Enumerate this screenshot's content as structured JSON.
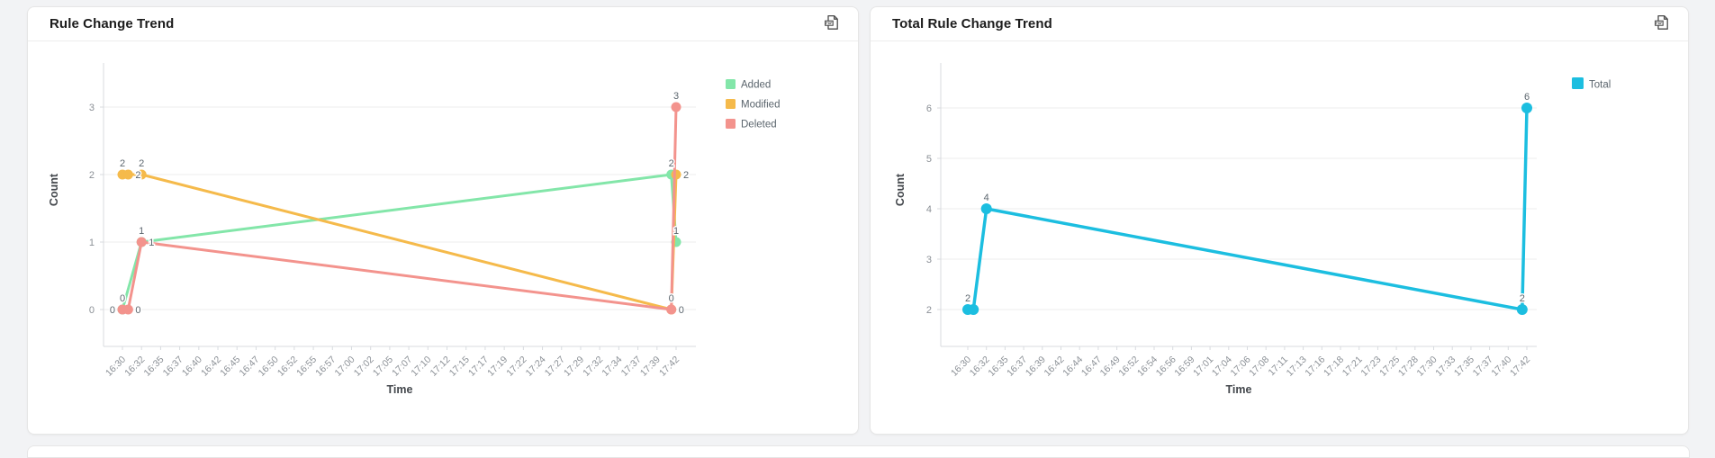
{
  "page": {
    "background": "#f2f3f5"
  },
  "panels": [
    {
      "title": "Rule Change Trend",
      "action_icon": "pdf-export"
    },
    {
      "title": "Total Rule Change Trend",
      "action_icon": "pdf-export"
    }
  ],
  "chart_data": [
    {
      "type": "line",
      "title": "Rule Change Trend",
      "xlabel": "Time",
      "ylabel": "Count",
      "grid": true,
      "legend_position": "right",
      "y_ticks": [
        0,
        1,
        2,
        3
      ],
      "ylim": [
        0,
        3.7
      ],
      "x_tick_labels": [
        "16:30",
        "16:32",
        "16:35",
        "16:37",
        "16:40",
        "16:42",
        "16:45",
        "16:47",
        "16:50",
        "16:52",
        "16:55",
        "16:57",
        "17:00",
        "17:02",
        "17:05",
        "17:07",
        "17:10",
        "17:12",
        "17:15",
        "17:17",
        "17:19",
        "17:22",
        "17:24",
        "17:27",
        "17:29",
        "17:32",
        "17:34",
        "17:37",
        "17:39",
        "17:42"
      ],
      "style": {
        "grid": "#ededed",
        "axis": "#d8dbdf",
        "tick_label": "#8b9096",
        "data_label": "#5c666e",
        "axis_title": "#43474c",
        "legend_text": "#5a646c"
      },
      "series": [
        {
          "name": "Added",
          "color": "#83e6a9",
          "points": [
            {
              "t": "16:30",
              "xi": 0,
              "y": 0,
              "lp": "left"
            },
            {
              "t": "16:32",
              "xi": 1,
              "y": 1,
              "lp": "right"
            },
            {
              "t": "17:39",
              "xi": 28.75,
              "y": 2,
              "lp": "above"
            },
            {
              "t": "17:42",
              "xi": 29,
              "y": 1,
              "lp": "above"
            }
          ]
        },
        {
          "name": "Modified",
          "color": "#f5ba4b",
          "points": [
            {
              "t": "16:30",
              "xi": 0,
              "y": 2,
              "lp": "above"
            },
            {
              "t": "16:30",
              "xi": 0.3,
              "y": 2,
              "lp": "right"
            },
            {
              "t": "16:32",
              "xi": 1,
              "y": 2,
              "lp": "above"
            },
            {
              "t": "17:39",
              "xi": 28.75,
              "y": 0,
              "lp": "right"
            },
            {
              "t": "17:42",
              "xi": 29,
              "y": 2,
              "lp": "right"
            }
          ]
        },
        {
          "name": "Deleted",
          "color": "#f3938d",
          "points": [
            {
              "t": "16:30",
              "xi": 0,
              "y": 0,
              "lp": "above"
            },
            {
              "t": "16:30",
              "xi": 0.3,
              "y": 0,
              "lp": "right"
            },
            {
              "t": "16:32",
              "xi": 1,
              "y": 1,
              "lp": "above"
            },
            {
              "t": "17:39",
              "xi": 28.75,
              "y": 0,
              "lp": "above"
            },
            {
              "t": "17:42",
              "xi": 29,
              "y": 3,
              "lp": "above"
            }
          ]
        }
      ]
    },
    {
      "type": "line",
      "title": "Total Rule Change Trend",
      "xlabel": "Time",
      "ylabel": "Count",
      "grid": true,
      "legend_position": "right",
      "y_ticks": [
        2,
        3,
        4,
        5,
        6
      ],
      "ylim": [
        1.2,
        6.7
      ],
      "x_tick_labels": [
        "16:30",
        "16:32",
        "16:35",
        "16:37",
        "16:39",
        "16:42",
        "16:44",
        "16:47",
        "16:49",
        "16:52",
        "16:54",
        "16:56",
        "16:59",
        "17:01",
        "17:04",
        "17:06",
        "17:08",
        "17:11",
        "17:13",
        "17:16",
        "17:18",
        "17:21",
        "17:23",
        "17:25",
        "17:28",
        "17:30",
        "17:33",
        "17:35",
        "17:37",
        "17:40",
        "17:42"
      ],
      "style": {
        "grid": "#ededed",
        "axis": "#d8dbdf",
        "tick_label": "#8b9096",
        "data_label": "#5c666e",
        "axis_title": "#43474c",
        "legend_text": "#5a646c"
      },
      "series": [
        {
          "name": "Total",
          "color": "#1cbee0",
          "points": [
            {
              "t": "16:30",
              "xi": 0,
              "y": 2,
              "lp": "above"
            },
            {
              "t": "16:30",
              "xi": 0.3,
              "y": 2,
              "lp": "none"
            },
            {
              "t": "16:32",
              "xi": 1,
              "y": 4,
              "lp": "above"
            },
            {
              "t": "17:40",
              "xi": 29.75,
              "y": 2,
              "lp": "above"
            },
            {
              "t": "17:42",
              "xi": 30,
              "y": 6,
              "lp": "above"
            }
          ]
        }
      ]
    }
  ]
}
